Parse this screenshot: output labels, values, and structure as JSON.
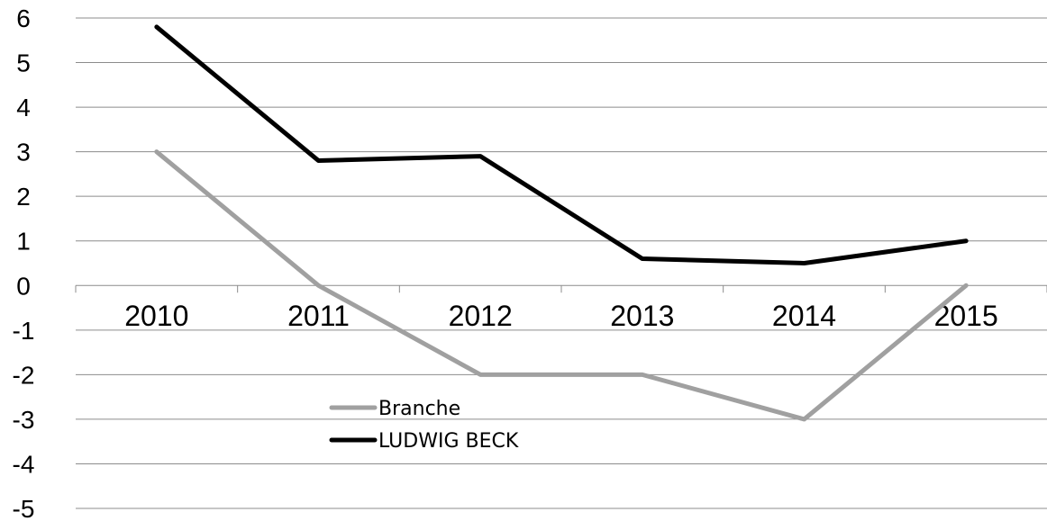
{
  "chart_data": {
    "type": "line",
    "title": "",
    "xlabel": "",
    "ylabel": "",
    "categories": [
      "2010",
      "2011",
      "2012",
      "2013",
      "2014",
      "2015"
    ],
    "ylim": [
      -5,
      6
    ],
    "y_ticks": [
      "6",
      "5",
      "4",
      "3",
      "2",
      "1",
      "0",
      "-1",
      "-2",
      "-3",
      "-4",
      "-5"
    ],
    "grid": true,
    "legend_position": "bottom-left",
    "series": [
      {
        "name": "Branche",
        "color": "#a0a0a0",
        "values": [
          3,
          0,
          -2,
          -2,
          -3,
          0
        ]
      },
      {
        "name": "LUDWIG BECK",
        "color": "#000000",
        "values": [
          5.8,
          2.8,
          2.9,
          0.6,
          0.5,
          1.0
        ]
      }
    ]
  }
}
